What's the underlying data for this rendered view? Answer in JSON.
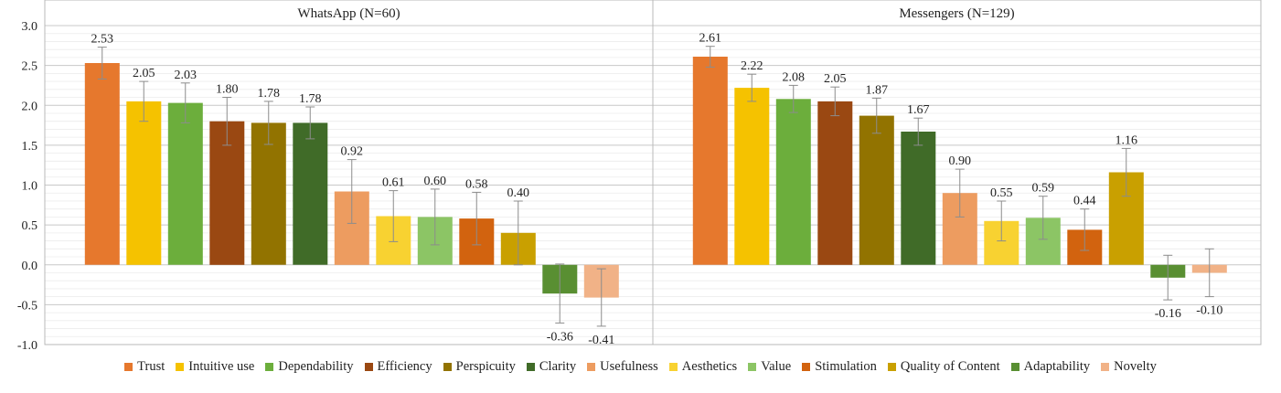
{
  "chart_data": {
    "type": "bar",
    "categories": [
      "Trust",
      "Intuitive use",
      "Dependability",
      "Efficiency",
      "Perspicuity",
      "Clarity",
      "Usefulness",
      "Aesthetics",
      "Value",
      "Stimulation",
      "Quality of Content",
      "Adaptability",
      "Novelty"
    ],
    "colors": [
      "#E6782D",
      "#F5C200",
      "#6CAE3C",
      "#9A4812",
      "#927300",
      "#406B28",
      "#ED9C60",
      "#F8D231",
      "#8CC565",
      "#D2630F",
      "#C9A000",
      "#598F32",
      "#F1B287"
    ],
    "ylim": [
      -1.0,
      3.0
    ],
    "yticks": [
      "3.0",
      "2.5",
      "2.0",
      "1.5",
      "1.0",
      "0.5",
      "0.0",
      "-0.5",
      "-1.0"
    ],
    "grid": true,
    "panels": [
      {
        "title": "WhatsApp (N=60)",
        "values": [
          2.53,
          2.05,
          2.03,
          1.8,
          1.78,
          1.78,
          0.92,
          0.61,
          0.6,
          0.58,
          0.4,
          -0.36,
          -0.41
        ],
        "labels": [
          "2.53",
          "2.05",
          "2.03",
          "1.80",
          "1.78",
          "1.78",
          "0.92",
          "0.61",
          "0.60",
          "0.58",
          "0.40",
          "-0.36",
          "-0.41"
        ],
        "errors": [
          0.2,
          0.25,
          0.25,
          0.3,
          0.27,
          0.2,
          0.4,
          0.32,
          0.35,
          0.33,
          0.4,
          0.37,
          0.36
        ]
      },
      {
        "title": "Messengers (N=129)",
        "values": [
          2.61,
          2.22,
          2.08,
          2.05,
          1.87,
          1.67,
          0.9,
          0.55,
          0.59,
          0.44,
          1.16,
          -0.16,
          -0.1
        ],
        "labels": [
          "2.61",
          "2.22",
          "2.08",
          "2.05",
          "1.87",
          "1.67",
          "0.90",
          "0.55",
          "0.59",
          "0.44",
          "1.16",
          "-0.16",
          "-0.10"
        ],
        "errors": [
          0.13,
          0.17,
          0.17,
          0.18,
          0.22,
          0.17,
          0.3,
          0.25,
          0.27,
          0.26,
          0.3,
          0.28,
          0.3
        ]
      }
    ]
  }
}
